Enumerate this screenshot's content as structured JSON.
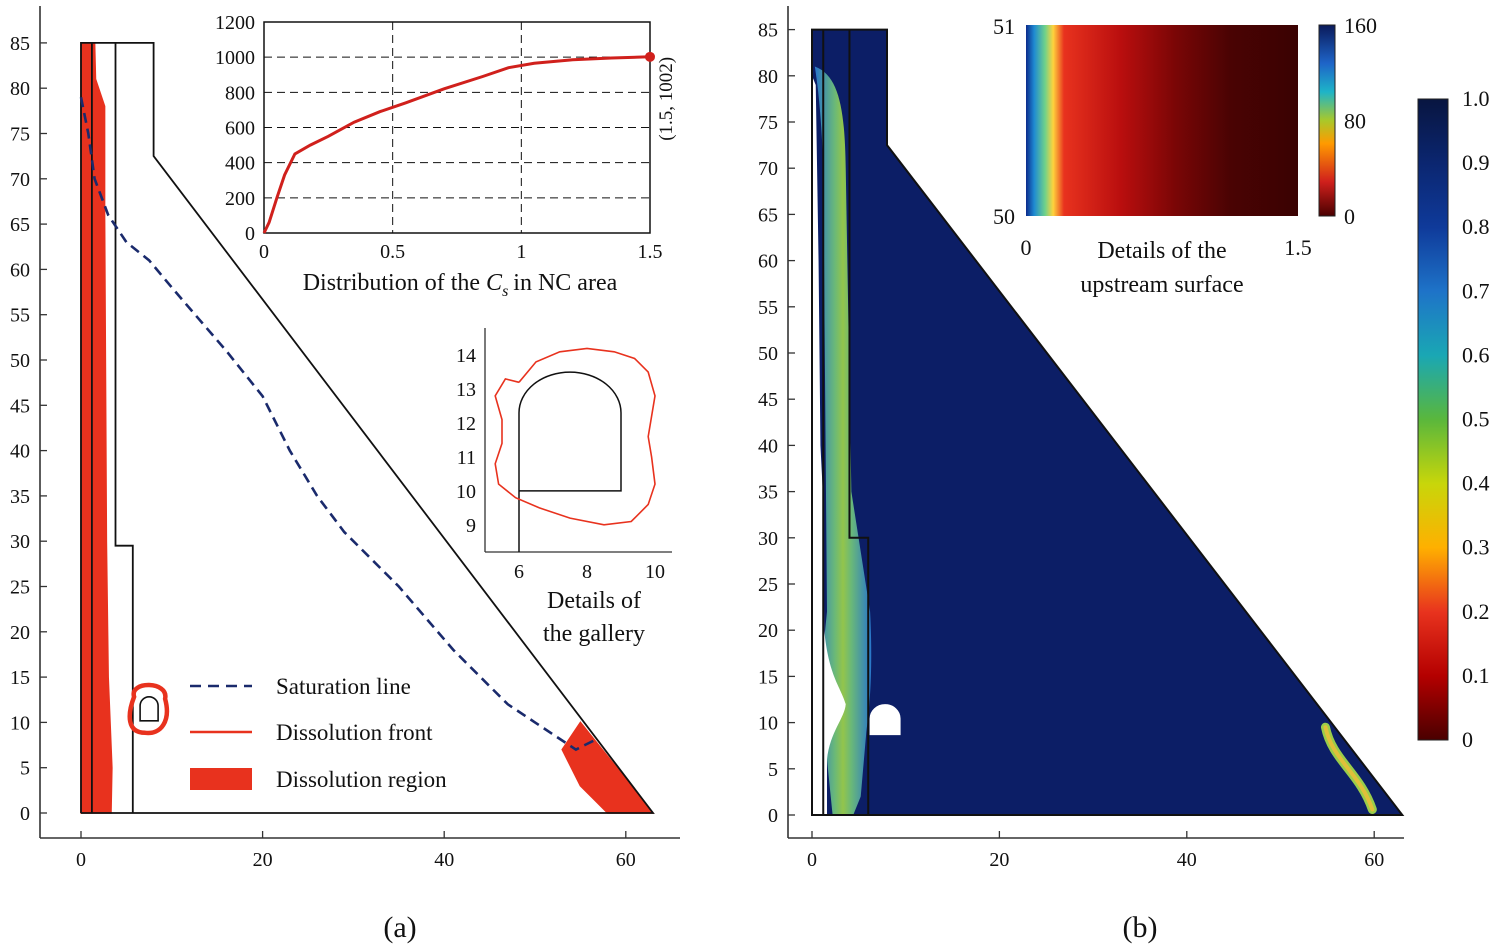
{
  "chart_data": [
    {
      "id": "a",
      "type": "line",
      "panel_label": "(a)",
      "xlim": [
        -4,
        66
      ],
      "ylim": [
        -4,
        87
      ],
      "xticks": [
        0,
        20,
        40,
        60
      ],
      "yticks": [
        0,
        5,
        10,
        15,
        20,
        25,
        30,
        35,
        40,
        45,
        50,
        55,
        60,
        65,
        70,
        75,
        80,
        85
      ],
      "dam_outline": [
        [
          0,
          0
        ],
        [
          0,
          85
        ],
        [
          8,
          85
        ],
        [
          8,
          72.5
        ],
        [
          63,
          0
        ],
        [
          0,
          0
        ]
      ],
      "inner_boundary_1": [
        [
          1.2,
          0
        ],
        [
          1.2,
          85
        ]
      ],
      "inner_boundary_2": [
        [
          3.8,
          85
        ],
        [
          3.8,
          29.5
        ],
        [
          5.7,
          29.5
        ],
        [
          5.7,
          0
        ]
      ],
      "saturation_line": [
        [
          0,
          79
        ],
        [
          0.8,
          75
        ],
        [
          1.5,
          70
        ],
        [
          3,
          66
        ],
        [
          5,
          63
        ],
        [
          7.5,
          61
        ],
        [
          10,
          58
        ],
        [
          13,
          54.5
        ],
        [
          16,
          51
        ],
        [
          20,
          46
        ],
        [
          23,
          40
        ],
        [
          26,
          35
        ],
        [
          29,
          31
        ],
        [
          32,
          28
        ],
        [
          35,
          25
        ],
        [
          38,
          21.5
        ],
        [
          41,
          18
        ],
        [
          44,
          15
        ],
        [
          47,
          12
        ],
        [
          50,
          10
        ],
        [
          53,
          8
        ],
        [
          54.5,
          7
        ],
        [
          55.5,
          7.5
        ],
        [
          56.5,
          8
        ]
      ],
      "dissolution_regions": [
        {
          "name": "upstream",
          "points": [
            [
              0,
              85
            ],
            [
              1.5,
              85
            ],
            [
              1.6,
              81
            ],
            [
              2.6,
              78
            ],
            [
              2.6,
              66
            ],
            [
              2.8,
              30
            ],
            [
              3,
              15
            ],
            [
              3.4,
              5
            ],
            [
              3.3,
              0
            ],
            [
              0,
              0
            ]
          ]
        },
        {
          "name": "toe",
          "points": [
            [
              55,
              10
            ],
            [
              53,
              7
            ],
            [
              55,
              3
            ],
            [
              56.5,
              1.5
            ],
            [
              58,
              0
            ],
            [
              63,
              0
            ]
          ]
        }
      ],
      "gallery_marker": {
        "center": [
          7.5,
          11.5
        ]
      },
      "legend": [
        {
          "label": "Saturation line",
          "style": "dashed",
          "color": "#1a2a6c"
        },
        {
          "label": "Dissolution front",
          "style": "line",
          "color": "#e8321e"
        },
        {
          "label": "Dissolution region",
          "style": "patch",
          "color": "#e8321e"
        }
      ]
    },
    {
      "id": "a-inset-cs",
      "type": "line",
      "xlabel_pre": "Distribution of the",
      "xlabel_var": "C",
      "xlabel_sub": "s",
      "xlabel_post": "in  NC area",
      "xlim": [
        0,
        1.5
      ],
      "ylim": [
        0,
        1200
      ],
      "xticks": [
        0,
        0.5,
        1,
        1.5
      ],
      "yticks": [
        0,
        200,
        400,
        600,
        800,
        1000,
        1200
      ],
      "grid": true,
      "series": [
        {
          "name": "Cs",
          "color": "#d0201c",
          "points": [
            [
              0,
              0
            ],
            [
              0.02,
              60
            ],
            [
              0.05,
              200
            ],
            [
              0.08,
              330
            ],
            [
              0.12,
              450
            ],
            [
              0.18,
              500
            ],
            [
              0.25,
              550
            ],
            [
              0.35,
              630
            ],
            [
              0.45,
              690
            ],
            [
              0.55,
              740
            ],
            [
              0.7,
              820
            ],
            [
              0.85,
              890
            ],
            [
              0.95,
              940
            ],
            [
              1.05,
              965
            ],
            [
              1.2,
              985
            ],
            [
              1.35,
              995
            ],
            [
              1.5,
              1002
            ]
          ]
        }
      ],
      "annotation": {
        "text": "(1.5, 1002)",
        "point": [
          1.5,
          1002
        ]
      }
    },
    {
      "id": "a-inset-gallery",
      "type": "line",
      "xlabel_line1": "Details of",
      "xlabel_line2": "the gallery",
      "xlim": [
        5,
        10.5
      ],
      "ylim": [
        8.2,
        14.8
      ],
      "xticks": [
        6,
        8,
        10
      ],
      "yticks": [
        9,
        10,
        11,
        12,
        13,
        14
      ],
      "gallery_outline": {
        "floor": 10,
        "wall_left": 6,
        "wall_right": 9,
        "spring": 12.3,
        "crown": 13.5
      },
      "dissolution_front": [
        [
          6,
          13.2
        ],
        [
          6.5,
          13.8
        ],
        [
          7.2,
          14.1
        ],
        [
          8,
          14.2
        ],
        [
          8.8,
          14.1
        ],
        [
          9.4,
          13.9
        ],
        [
          9.8,
          13.5
        ],
        [
          10,
          12.8
        ],
        [
          9.9,
          12.2
        ],
        [
          9.8,
          11.6
        ],
        [
          9.9,
          11
        ],
        [
          10,
          10.2
        ],
        [
          9.8,
          9.6
        ],
        [
          9.3,
          9.1
        ],
        [
          8.5,
          9
        ],
        [
          7.5,
          9.2
        ],
        [
          6.6,
          9.5
        ],
        [
          5.9,
          9.8
        ],
        [
          5.4,
          10.2
        ],
        [
          5.3,
          10.8
        ],
        [
          5.5,
          11.4
        ],
        [
          5.5,
          12.1
        ],
        [
          5.3,
          12.8
        ],
        [
          5.6,
          13.3
        ],
        [
          6,
          13.2
        ]
      ]
    },
    {
      "id": "b",
      "type": "heatmap",
      "panel_label": "(b)",
      "xlim": [
        -4,
        66
      ],
      "ylim": [
        -4,
        87
      ],
      "xticks": [
        0,
        20,
        40,
        60
      ],
      "yticks": [
        0,
        5,
        10,
        15,
        20,
        25,
        30,
        35,
        40,
        45,
        50,
        55,
        60,
        65,
        70,
        75,
        80,
        85
      ],
      "colorbar": {
        "min": 0,
        "max": 1,
        "ticks": [
          "0",
          "0.1",
          "0.2",
          "0.3",
          "0.4",
          "0.5",
          "0.6",
          "0.7",
          "0.8",
          "0.9",
          "1.0"
        ]
      },
      "colormap": [
        "#4a0000",
        "#b40000",
        "#e8331e",
        "#ffb000",
        "#c8d60a",
        "#5ab73c",
        "#1aa7b4",
        "#1e73c8",
        "#0f3a9a",
        "#0b2670",
        "#081540"
      ]
    },
    {
      "id": "b-inset-upstream",
      "type": "heatmap",
      "xlabel_line1": "Details of the",
      "xlabel_line2": "upstream surface",
      "xlim": [
        0,
        1.5
      ],
      "ylim": [
        50,
        51
      ],
      "xticks": [
        0,
        1.5
      ],
      "yticks": [
        50,
        51
      ],
      "colorbar": {
        "min": 0,
        "max": 160,
        "ticks": [
          0,
          80,
          160
        ]
      }
    }
  ]
}
